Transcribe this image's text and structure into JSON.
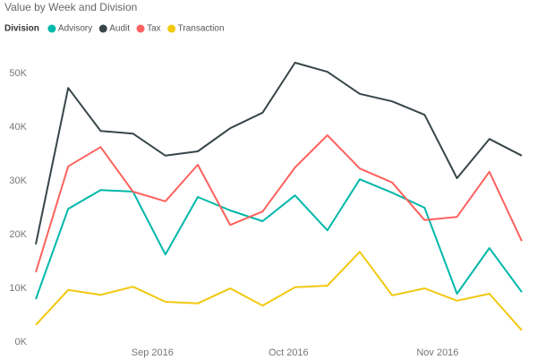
{
  "chart_data": {
    "type": "line",
    "title": "Value by Week and Division",
    "legend_title": "Division",
    "legend_position": "top-left",
    "grid": false,
    "categories": [
      null,
      null,
      null,
      null,
      null,
      null,
      null,
      null,
      null,
      null,
      null,
      null,
      null,
      null,
      null,
      null
    ],
    "xticks": [
      {
        "value": 3.6,
        "label": "Sep 2016"
      },
      {
        "value": 7.8,
        "label": "Oct 2016"
      },
      {
        "value": 12.4,
        "label": "Nov 2016"
      }
    ],
    "ylim": [
      0,
      55
    ],
    "yticks": [
      {
        "value": 0,
        "label": "0K"
      },
      {
        "value": 10,
        "label": "10K"
      },
      {
        "value": 20,
        "label": "20K"
      },
      {
        "value": 30,
        "label": "30K"
      },
      {
        "value": 40,
        "label": "40K"
      },
      {
        "value": 50,
        "label": "50K"
      }
    ],
    "series": [
      {
        "name": "Advisory",
        "color": "#01b8aa",
        "values": [
          8.0,
          24.8,
          28.3,
          28.0,
          16.3,
          27.0,
          24.5,
          22.5,
          27.3,
          20.8,
          30.3,
          27.8,
          25.0,
          9.0,
          17.5,
          9.3
        ]
      },
      {
        "name": "Audit",
        "color": "#374649",
        "values": [
          18.2,
          47.3,
          39.3,
          38.8,
          34.7,
          35.5,
          39.8,
          42.7,
          52.0,
          50.3,
          46.2,
          44.8,
          42.3,
          30.5,
          37.8,
          34.7
        ]
      },
      {
        "name": "Tax",
        "color": "#fd625e",
        "values": [
          13.0,
          32.7,
          36.3,
          28.0,
          26.2,
          33.0,
          21.8,
          24.3,
          32.5,
          38.5,
          32.3,
          29.7,
          22.7,
          23.3,
          31.7,
          18.8
        ]
      },
      {
        "name": "Transaction",
        "color": "#f2c80f",
        "values": [
          3.2,
          9.7,
          8.8,
          10.3,
          7.5,
          7.2,
          10.0,
          6.8,
          10.2,
          10.5,
          16.8,
          8.7,
          10.0,
          7.7,
          9.0,
          2.2
        ]
      }
    ]
  }
}
